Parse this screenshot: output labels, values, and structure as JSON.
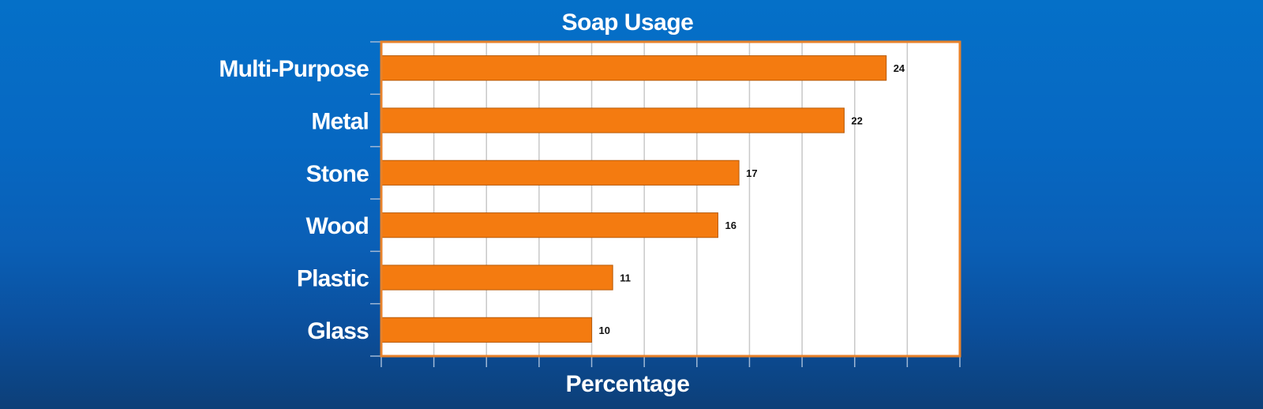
{
  "chart_data": {
    "type": "bar",
    "orientation": "horizontal",
    "title": "Soap Usage",
    "xlabel": "Percentage",
    "ylabel": "",
    "categories": [
      "Multi-Purpose",
      "Metal",
      "Stone",
      "Wood",
      "Plastic",
      "Glass"
    ],
    "values": [
      24,
      22,
      17,
      16,
      11,
      10
    ],
    "xlim": [
      0,
      27.5
    ],
    "grid": true,
    "legend": "none",
    "colors": {
      "bar": "#f47b10",
      "bar_border": "#b85a08",
      "plot_border": "#e8822a",
      "plot_background": "#ffffff",
      "gridline": "#c8c8c8",
      "text": "#ffffff",
      "data_label": "#111111"
    }
  }
}
